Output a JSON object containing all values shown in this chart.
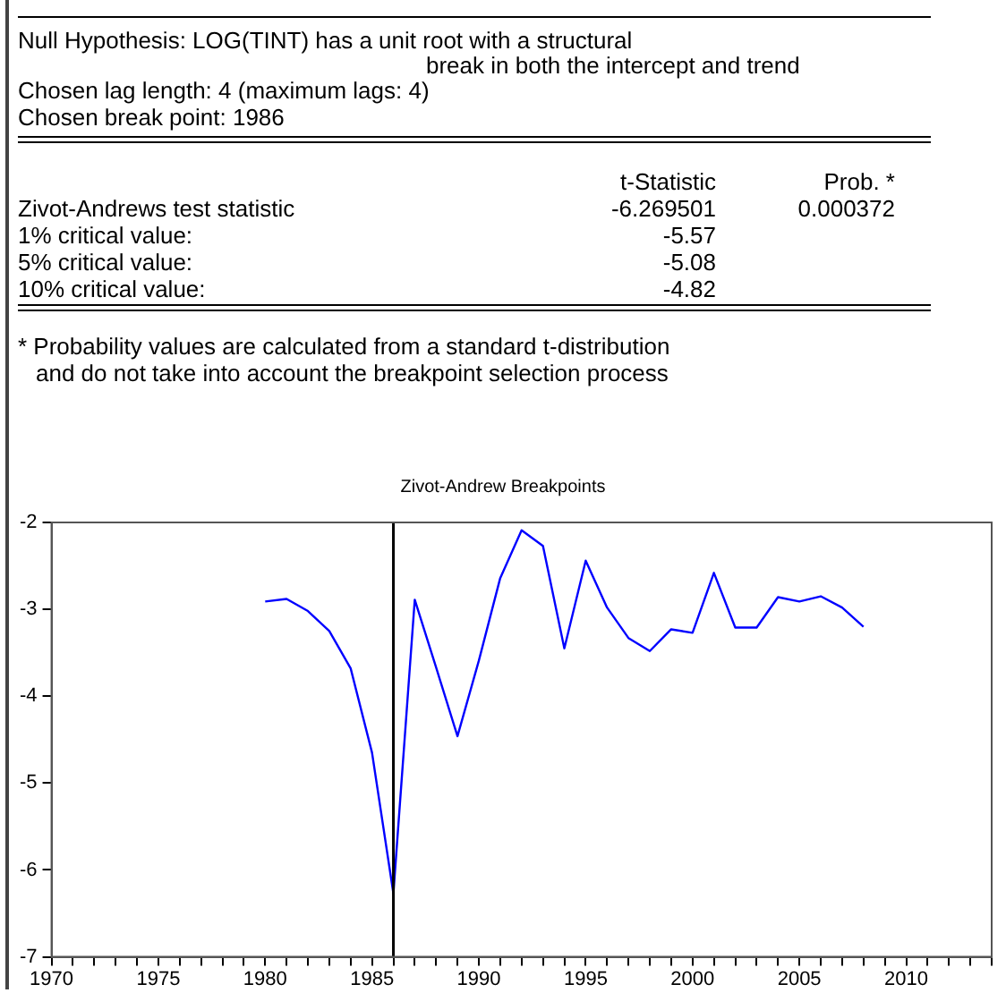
{
  "chart_data": {
    "type": "line",
    "title": "Zivot-Andrew Breakpoints",
    "x": [
      1980,
      1981,
      1982,
      1983,
      1984,
      1985,
      1986,
      1987,
      1988,
      1989,
      1990,
      1991,
      1992,
      1993,
      1994,
      1995,
      1996,
      1997,
      1998,
      1999,
      2000,
      2001,
      2002,
      2003,
      2004,
      2005,
      2006,
      2007,
      2008
    ],
    "series": [
      {
        "color": "#0000ff",
        "values": [
          -2.91,
          -2.88,
          -3.02,
          -3.25,
          -3.68,
          -4.65,
          -6.27,
          -2.89,
          -3.67,
          -4.46,
          -3.59,
          -2.64,
          -2.09,
          -2.27,
          -3.45,
          -2.44,
          -2.98,
          -3.33,
          -3.48,
          -3.23,
          -3.27,
          -2.58,
          -3.21,
          -3.21,
          -2.86,
          -2.91,
          -2.85,
          -2.98,
          -3.2
        ]
      }
    ],
    "xlim": [
      1970,
      2014
    ],
    "xticks": [
      1970,
      {
        "value": 1971,
        "label": null
      },
      {
        "value": 1972,
        "label": null
      },
      {
        "value": 1973,
        "label": null
      },
      {
        "value": 1974,
        "label": null
      },
      1975,
      {
        "value": 1976,
        "label": null
      },
      {
        "value": 1977,
        "label": null
      },
      {
        "value": 1978,
        "label": null
      },
      {
        "value": 1979,
        "label": null
      },
      1980,
      {
        "value": 1981,
        "label": null
      },
      {
        "value": 1982,
        "label": null
      },
      {
        "value": 1983,
        "label": null
      },
      {
        "value": 1984,
        "label": null
      },
      1985,
      {
        "value": 1986,
        "label": null
      },
      {
        "value": 1987,
        "label": null
      },
      {
        "value": 1988,
        "label": null
      },
      {
        "value": 1989,
        "label": null
      },
      1990,
      {
        "value": 1991,
        "label": null
      },
      {
        "value": 1992,
        "label": null
      },
      {
        "value": 1993,
        "label": null
      },
      {
        "value": 1994,
        "label": null
      },
      1995,
      {
        "value": 1996,
        "label": null
      },
      {
        "value": 1997,
        "label": null
      },
      {
        "value": 1998,
        "label": null
      },
      {
        "value": 1999,
        "label": null
      },
      2000,
      {
        "value": 2001,
        "label": null
      },
      {
        "value": 2002,
        "label": null
      },
      {
        "value": 2003,
        "label": null
      },
      {
        "value": 2004,
        "label": null
      },
      2005,
      {
        "value": 2006,
        "label": null
      },
      {
        "value": 2007,
        "label": null
      },
      {
        "value": 2008,
        "label": null
      },
      {
        "value": 2009,
        "label": null
      },
      2010,
      {
        "value": 2011,
        "label": null
      },
      {
        "value": 2012,
        "label": null
      },
      {
        "value": 2013,
        "label": null
      },
      {
        "value": 2014,
        "label": null
      }
    ],
    "ylim": [
      -7,
      -2
    ],
    "yticks": [
      -7,
      -6,
      -5,
      -4,
      -3,
      -2
    ],
    "grid": false,
    "legend": false,
    "marker": "none",
    "line_style": "solid",
    "ref_lines": [
      {
        "axis": "x",
        "value": 1986,
        "color": "#000000"
      }
    ],
    "annotations": [
      "Null Hypothesis: LOG(TINT) has a unit root with a structural",
      "break in both the intercept and trend",
      "Chosen lag length: 4 (maximum lags: 4)",
      "Chosen break point: 1986",
      "t-Statistic",
      "Prob. *",
      "Zivot-Andrews test statistic",
      "-6.269501",
      "0.000372",
      "1% critical value:",
      "-5.57",
      "5% critical value:",
      "-5.08",
      "10% critical value:",
      "-4.82",
      "* Probability values are calculated from a standard t-distribution",
      "and do not take into account the breakpoint selection process"
    ]
  }
}
